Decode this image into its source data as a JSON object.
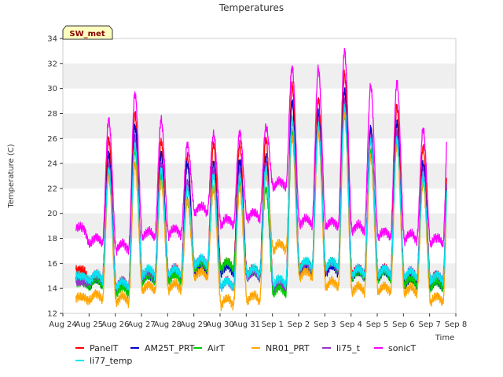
{
  "chart_data": {
    "type": "line",
    "title": "Temperatures",
    "xlabel": "Time",
    "ylabel": "Temperature (C)",
    "station_label": "SW_met",
    "ylim": [
      12,
      34
    ],
    "yticks": [
      12,
      14,
      16,
      18,
      20,
      22,
      24,
      26,
      28,
      30,
      32,
      34
    ],
    "xlim_days": [
      0,
      15
    ],
    "xtick_labels": [
      "Aug 24",
      "Aug 25",
      "Aug 26",
      "Aug 27",
      "Aug 28",
      "Aug 29",
      "Aug 30",
      "Aug 31",
      "Sep 1",
      "Sep 2",
      "Sep 3",
      "Sep 4",
      "Sep 5",
      "Sep 6",
      "Sep 7",
      "Sep 8"
    ],
    "grid": "horizontal bands",
    "legend_position": "bottom",
    "x_start": "Aug 24",
    "x_end": "Sep 7",
    "day_labels": [
      "Aug 24",
      "Aug 25",
      "Aug 26",
      "Aug 27",
      "Aug 28",
      "Aug 29",
      "Aug 30",
      "Aug 31",
      "Sep 1",
      "Sep 2",
      "Sep 3",
      "Sep 4",
      "Sep 5",
      "Sep 6",
      "Sep 7"
    ],
    "series": [
      {
        "name": "PanelT",
        "color": "#ff0000",
        "daily_min": [
          15.5,
          14.5,
          14.0,
          14.8,
          15.0,
          15.5,
          15.5,
          15.0,
          14.0,
          15.5,
          15.5,
          15.0,
          15.0,
          14.5,
          14.5
        ],
        "daily_max": [
          15.5,
          26.0,
          28.0,
          25.8,
          24.5,
          25.5,
          25.5,
          26.0,
          30.3,
          29.2,
          31.2,
          26.8,
          28.6,
          25.3,
          28.2
        ]
      },
      {
        "name": "AM25T_PRT",
        "color": "#0000cc",
        "daily_min": [
          14.8,
          14.2,
          13.8,
          14.5,
          14.8,
          15.2,
          15.2,
          14.8,
          13.8,
          15.2,
          15.2,
          14.8,
          14.8,
          14.2,
          14.0
        ],
        "daily_max": [
          14.8,
          24.8,
          27.0,
          24.8,
          24.0,
          24.0,
          24.2,
          24.5,
          28.9,
          28.0,
          29.8,
          26.8,
          27.3,
          24.0,
          27.0
        ]
      },
      {
        "name": "AirT",
        "color": "#00cc00",
        "daily_min": [
          14.5,
          14.2,
          13.5,
          14.5,
          14.5,
          15.5,
          15.5,
          14.8,
          13.5,
          15.5,
          15.5,
          14.8,
          14.8,
          14.2,
          14.0
        ],
        "daily_max": [
          14.5,
          23.5,
          25.0,
          23.0,
          21.0,
          22.0,
          22.5,
          22.0,
          26.5,
          26.5,
          28.0,
          25.0,
          26.0,
          22.5,
          26.0
        ]
      },
      {
        "name": "NR01_PRT",
        "color": "#ffa500",
        "daily_min": [
          13.3,
          13.0,
          12.8,
          13.7,
          13.8,
          14.8,
          12.6,
          12.9,
          17.0,
          14.8,
          14.0,
          13.6,
          13.6,
          13.5,
          12.8
        ],
        "daily_max": [
          13.3,
          23.0,
          24.0,
          22.5,
          21.0,
          22.0,
          22.0,
          23.0,
          26.0,
          26.5,
          28.0,
          24.5,
          25.5,
          22.5,
          26.0
        ]
      },
      {
        "name": "li75_t",
        "color": "#9932cc",
        "daily_min": [
          14.5,
          14.5,
          14.0,
          14.8,
          15.0,
          15.8,
          14.0,
          14.8,
          14.0,
          15.5,
          15.5,
          15.0,
          15.0,
          14.8,
          14.5
        ],
        "daily_max": [
          14.5,
          24.0,
          26.0,
          24.0,
          22.5,
          23.5,
          23.5,
          24.0,
          27.5,
          27.5,
          29.0,
          26.0,
          26.5,
          23.5,
          26.5
        ]
      },
      {
        "name": "sonicT",
        "color": "#ff00ff",
        "daily_min": [
          18.9,
          17.5,
          17.0,
          18.0,
          18.2,
          20.0,
          19.0,
          19.5,
          22.0,
          19.0,
          18.8,
          18.5,
          18.0,
          17.8,
          17.5
        ],
        "daily_max": [
          18.9,
          27.5,
          29.6,
          27.5,
          25.5,
          26.3,
          26.5,
          26.9,
          31.7,
          31.6,
          33.0,
          30.2,
          30.5,
          26.7,
          30.4
        ]
      },
      {
        "name": "li77_temp",
        "color": "#00e5ee",
        "daily_min": [
          15.0,
          14.6,
          14.0,
          15.0,
          15.0,
          15.8,
          14.0,
          15.0,
          14.2,
          15.6,
          15.6,
          15.0,
          15.0,
          14.8,
          14.5
        ],
        "daily_max": [
          15.0,
          23.5,
          25.5,
          23.5,
          22.0,
          23.0,
          23.0,
          23.5,
          27.5,
          27.0,
          28.5,
          25.8,
          26.0,
          23.0,
          26.0
        ]
      }
    ]
  }
}
